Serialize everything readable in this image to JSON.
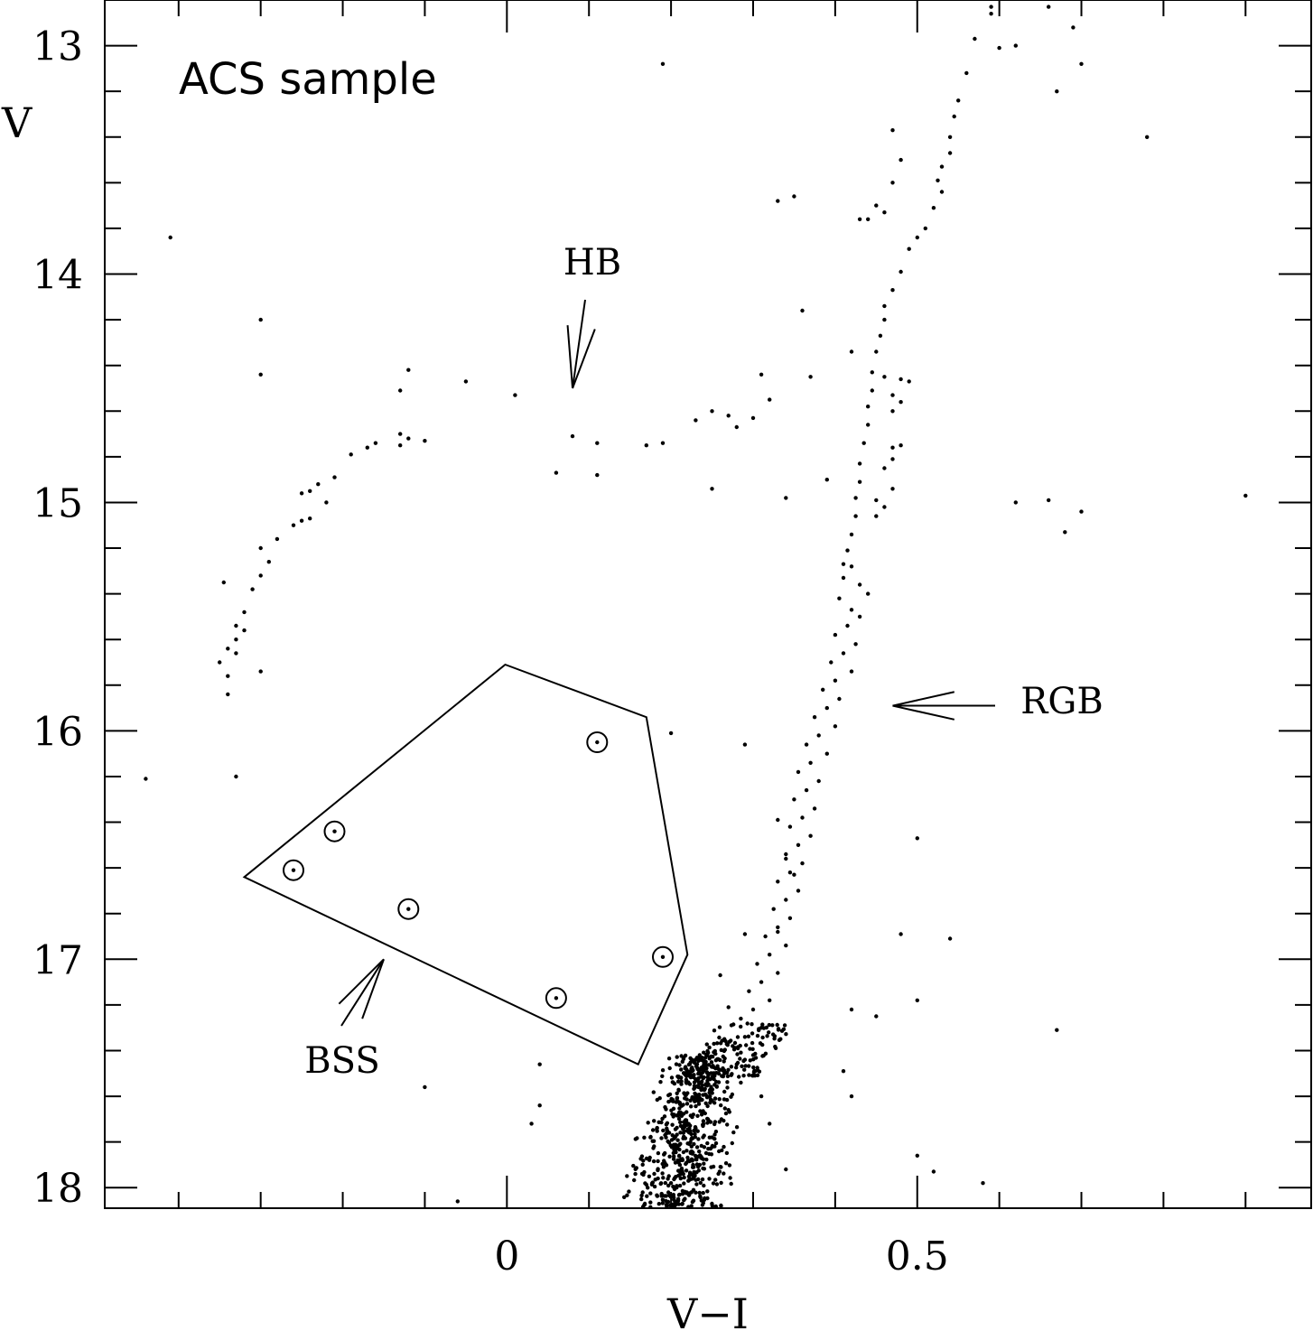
{
  "chart_data": {
    "type": "scatter",
    "title": "ACS sample",
    "xlabel": "V−I",
    "ylabel": "V",
    "xlim": [
      -0.49,
      0.98
    ],
    "ylim": [
      18.09,
      12.8
    ],
    "grid": false,
    "x_ticks": [
      {
        "value": 0,
        "label": "0"
      },
      {
        "value": 0.5,
        "label": "0.5"
      }
    ],
    "y_ticks": [
      {
        "value": 13,
        "label": "13"
      },
      {
        "value": 14,
        "label": "14"
      },
      {
        "value": 15,
        "label": "15"
      },
      {
        "value": 16,
        "label": "16"
      },
      {
        "value": 17,
        "label": "17"
      },
      {
        "value": 18,
        "label": "18"
      }
    ],
    "annotations": [
      {
        "text": "HB",
        "x": 0.11,
        "y": 13.94,
        "arrow_to": [
          0.08,
          14.5
        ]
      },
      {
        "text": "RGB",
        "x": 0.685,
        "y": 15.87,
        "arrow_to": [
          0.47,
          15.89
        ]
      },
      {
        "text": "BSS",
        "x": -0.2,
        "y": 17.46,
        "arrow_to": [
          -0.15,
          17.0
        ]
      }
    ],
    "bss_region": [
      [
        -0.002,
        15.71
      ],
      [
        0.17,
        15.94
      ],
      [
        0.22,
        16.98
      ],
      [
        0.16,
        17.46
      ],
      [
        -0.32,
        16.64
      ]
    ],
    "bss_stars": [
      [
        0.11,
        16.05
      ],
      [
        -0.21,
        16.44
      ],
      [
        -0.26,
        16.61
      ],
      [
        -0.12,
        16.78
      ],
      [
        0.19,
        16.99
      ],
      [
        0.06,
        17.17
      ]
    ],
    "series": [
      {
        "name": "",
        "points": [
          [
            -0.41,
            13.84
          ],
          [
            -0.3,
            14.2
          ],
          [
            -0.3,
            14.44
          ],
          [
            -0.12,
            14.42
          ],
          [
            -0.13,
            14.51
          ],
          [
            -0.05,
            14.47
          ],
          [
            0.01,
            14.53
          ],
          [
            0.08,
            14.71
          ],
          [
            0.11,
            14.74
          ],
          [
            0.06,
            14.87
          ],
          [
            0.11,
            14.88
          ],
          [
            0.17,
            14.75
          ],
          [
            0.19,
            14.74
          ],
          [
            0.23,
            14.64
          ],
          [
            0.25,
            14.6
          ],
          [
            0.27,
            14.62
          ],
          [
            0.28,
            14.67
          ],
          [
            0.3,
            14.63
          ],
          [
            0.31,
            14.44
          ],
          [
            0.32,
            14.55
          ],
          [
            0.37,
            14.45
          ],
          [
            -0.13,
            14.7
          ],
          [
            -0.12,
            14.72
          ],
          [
            -0.1,
            14.73
          ],
          [
            -0.13,
            14.75
          ],
          [
            -0.16,
            14.74
          ],
          [
            -0.17,
            14.76
          ],
          [
            -0.19,
            14.79
          ],
          [
            -0.21,
            14.89
          ],
          [
            -0.23,
            14.92
          ],
          [
            -0.24,
            14.95
          ],
          [
            -0.25,
            14.96
          ],
          [
            -0.22,
            15.0
          ],
          [
            -0.24,
            15.07
          ],
          [
            -0.25,
            15.08
          ],
          [
            -0.26,
            15.1
          ],
          [
            -0.28,
            15.16
          ],
          [
            -0.3,
            15.2
          ],
          [
            -0.29,
            15.26
          ],
          [
            -0.3,
            15.32
          ],
          [
            -0.31,
            15.38
          ],
          [
            -0.32,
            15.48
          ],
          [
            -0.33,
            15.54
          ],
          [
            -0.33,
            15.6
          ],
          [
            -0.34,
            15.64
          ],
          [
            -0.35,
            15.7
          ],
          [
            -0.34,
            15.76
          ],
          [
            -0.34,
            15.84
          ],
          [
            -0.3,
            15.74
          ],
          [
            -0.33,
            15.66
          ],
          [
            -0.32,
            15.56
          ],
          [
            -0.345,
            15.35
          ],
          [
            -0.44,
            16.21
          ],
          [
            -0.33,
            16.2
          ],
          [
            0.2,
            16.01
          ],
          [
            0.29,
            16.06
          ],
          [
            0.33,
            16.39
          ],
          [
            0.34,
            16.56
          ],
          [
            0.35,
            16.63
          ],
          [
            0.33,
            16.88
          ],
          [
            0.29,
            16.89
          ],
          [
            0.26,
            17.07
          ],
          [
            0.27,
            17.21
          ],
          [
            0.42,
            17.22
          ],
          [
            0.45,
            17.25
          ],
          [
            0.48,
            16.89
          ],
          [
            0.5,
            16.47
          ],
          [
            0.5,
            17.18
          ],
          [
            0.54,
            16.91
          ],
          [
            0.67,
            17.31
          ],
          [
            0.29,
            17.44
          ],
          [
            0.31,
            17.6
          ],
          [
            0.32,
            17.72
          ],
          [
            0.34,
            17.92
          ],
          [
            0.41,
            17.49
          ],
          [
            0.42,
            17.6
          ],
          [
            0.5,
            17.86
          ],
          [
            0.52,
            17.93
          ],
          [
            0.58,
            17.98
          ],
          [
            0.04,
            17.46
          ],
          [
            0.04,
            17.64
          ],
          [
            0.03,
            17.72
          ],
          [
            -0.1,
            17.56
          ],
          [
            -0.06,
            18.06
          ],
          [
            0.39,
            14.9
          ],
          [
            0.36,
            14.16
          ],
          [
            0.34,
            14.98
          ],
          [
            0.25,
            14.94
          ],
          [
            0.62,
            15.0
          ],
          [
            0.66,
            14.99
          ],
          [
            0.68,
            15.13
          ],
          [
            0.7,
            15.04
          ],
          [
            0.9,
            14.97
          ],
          [
            0.78,
            13.4
          ],
          [
            0.19,
            13.08
          ],
          [
            0.33,
            13.68
          ],
          [
            0.35,
            13.66
          ],
          [
            0.7,
            13.08
          ],
          [
            0.67,
            13.2
          ],
          [
            0.69,
            12.92
          ],
          [
            0.66,
            12.83
          ],
          [
            0.62,
            13.0
          ],
          [
            0.6,
            13.01
          ],
          [
            0.59,
            12.83
          ],
          [
            0.59,
            12.86
          ],
          [
            0.57,
            12.97
          ],
          [
            0.56,
            13.12
          ],
          [
            0.55,
            13.24
          ],
          [
            0.545,
            13.31
          ],
          [
            0.54,
            13.4
          ],
          [
            0.54,
            13.47
          ],
          [
            0.53,
            13.53
          ],
          [
            0.525,
            13.59
          ],
          [
            0.53,
            13.64
          ],
          [
            0.52,
            13.71
          ],
          [
            0.51,
            13.8
          ],
          [
            0.5,
            13.84
          ],
          [
            0.49,
            13.89
          ],
          [
            0.48,
            13.99
          ],
          [
            0.47,
            14.07
          ],
          [
            0.46,
            14.14
          ],
          [
            0.46,
            14.2
          ],
          [
            0.455,
            14.27
          ],
          [
            0.45,
            14.34
          ],
          [
            0.445,
            14.43
          ],
          [
            0.445,
            14.51
          ],
          [
            0.44,
            14.58
          ],
          [
            0.44,
            14.66
          ],
          [
            0.435,
            14.74
          ],
          [
            0.43,
            14.83
          ],
          [
            0.43,
            14.91
          ],
          [
            0.425,
            14.98
          ],
          [
            0.425,
            15.06
          ],
          [
            0.42,
            15.14
          ],
          [
            0.415,
            15.21
          ],
          [
            0.41,
            15.27
          ],
          [
            0.47,
            13.37
          ],
          [
            0.48,
            13.5
          ],
          [
            0.47,
            13.6
          ],
          [
            0.46,
            13.73
          ],
          [
            0.45,
            13.7
          ],
          [
            0.44,
            13.76
          ],
          [
            0.43,
            13.76
          ],
          [
            0.42,
            14.34
          ],
          [
            0.46,
            14.45
          ],
          [
            0.47,
            14.6
          ],
          [
            0.48,
            14.56
          ],
          [
            0.47,
            14.53
          ],
          [
            0.48,
            14.46
          ],
          [
            0.49,
            14.47
          ],
          [
            0.47,
            14.76
          ],
          [
            0.48,
            14.75
          ],
          [
            0.47,
            14.81
          ],
          [
            0.46,
            14.85
          ],
          [
            0.47,
            14.94
          ],
          [
            0.45,
            14.99
          ],
          [
            0.46,
            15.02
          ],
          [
            0.45,
            15.06
          ],
          [
            0.42,
            15.28
          ],
          [
            0.41,
            15.33
          ],
          [
            0.43,
            15.36
          ],
          [
            0.44,
            15.4
          ],
          [
            0.405,
            15.42
          ],
          [
            0.42,
            15.47
          ],
          [
            0.43,
            15.5
          ],
          [
            0.415,
            15.54
          ],
          [
            0.4,
            15.58
          ],
          [
            0.425,
            15.62
          ],
          [
            0.41,
            15.66
          ],
          [
            0.395,
            15.7
          ],
          [
            0.42,
            15.74
          ],
          [
            0.4,
            15.78
          ],
          [
            0.385,
            15.82
          ],
          [
            0.405,
            15.86
          ],
          [
            0.39,
            15.9
          ],
          [
            0.375,
            15.94
          ],
          [
            0.4,
            15.98
          ],
          [
            0.38,
            16.02
          ],
          [
            0.365,
            16.06
          ],
          [
            0.39,
            16.1
          ],
          [
            0.37,
            16.14
          ],
          [
            0.355,
            16.18
          ],
          [
            0.38,
            16.22
          ],
          [
            0.365,
            16.26
          ],
          [
            0.35,
            16.3
          ],
          [
            0.375,
            16.34
          ],
          [
            0.36,
            16.38
          ],
          [
            0.345,
            16.42
          ],
          [
            0.37,
            16.46
          ],
          [
            0.355,
            16.5
          ],
          [
            0.34,
            16.54
          ],
          [
            0.36,
            16.58
          ],
          [
            0.345,
            16.62
          ],
          [
            0.33,
            16.66
          ],
          [
            0.355,
            16.7
          ],
          [
            0.34,
            16.74
          ],
          [
            0.325,
            16.78
          ],
          [
            0.345,
            16.82
          ],
          [
            0.33,
            16.86
          ],
          [
            0.315,
            16.9
          ],
          [
            0.34,
            16.94
          ],
          [
            0.32,
            16.98
          ],
          [
            0.305,
            17.02
          ],
          [
            0.33,
            17.06
          ],
          [
            0.31,
            17.1
          ],
          [
            0.295,
            17.14
          ],
          [
            0.32,
            17.18
          ],
          [
            0.3,
            17.22
          ],
          [
            0.285,
            17.26
          ],
          [
            0.31,
            17.3
          ],
          [
            0.29,
            17.34
          ],
          [
            0.275,
            17.38
          ],
          [
            0.3,
            17.42
          ],
          [
            0.28,
            17.46
          ],
          [
            0.265,
            17.5
          ],
          [
            0.285,
            17.54
          ],
          [
            0.265,
            17.58
          ],
          [
            0.25,
            17.62
          ],
          [
            0.27,
            17.66
          ],
          [
            0.245,
            17.7
          ],
          [
            0.23,
            17.74
          ],
          [
            0.25,
            17.78
          ],
          [
            0.225,
            17.82
          ],
          [
            0.21,
            17.86
          ],
          [
            0.235,
            17.9
          ],
          [
            0.215,
            17.94
          ],
          [
            0.2,
            17.98
          ],
          [
            0.225,
            18.02
          ],
          [
            0.205,
            18.06
          ]
        ]
      }
    ]
  }
}
